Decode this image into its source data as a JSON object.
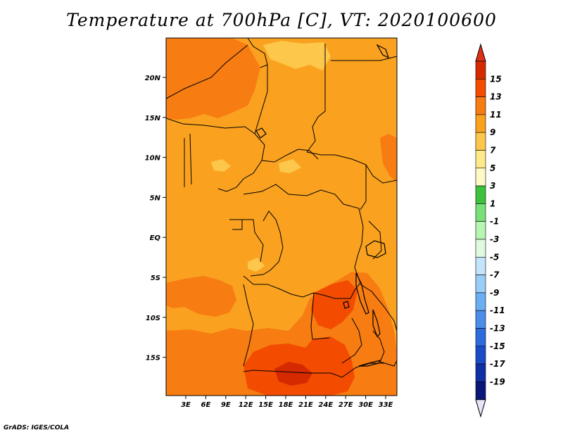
{
  "title": "Temperature at 700hPa [C], VT: 2020100600",
  "footer": "GrADS: IGES/COLA",
  "map": {
    "lat_labels": [
      "20N",
      "15N",
      "10N",
      "5N",
      "EQ",
      "5S",
      "10S",
      "15S"
    ],
    "lon_labels": [
      "3E",
      "6E",
      "9E",
      "12E",
      "15E",
      "18E",
      "21E",
      "24E",
      "27E",
      "30E",
      "33E"
    ]
  },
  "colorbar": {
    "labels": [
      "15",
      "13",
      "11",
      "9",
      "7",
      "5",
      "3",
      "1",
      "-1",
      "-3",
      "-5",
      "-7",
      "-9",
      "-11",
      "-13",
      "-15",
      "-17",
      "-19"
    ],
    "colors": [
      "#d52a00",
      "#f34c00",
      "#f77c12",
      "#faa21f",
      "#fdc74c",
      "#ffe98a",
      "#fff9c6",
      "#3ec23e",
      "#78e078",
      "#b6f5b2",
      "#e0fae0",
      "#c4e4fb",
      "#9acdf8",
      "#6baef2",
      "#4a8ee9",
      "#2d6bdc",
      "#1a4cc8",
      "#0f2fa6",
      "#0a1678"
    ],
    "top_color": "#e03015",
    "bottom_color": "#e6e6fb"
  }
}
